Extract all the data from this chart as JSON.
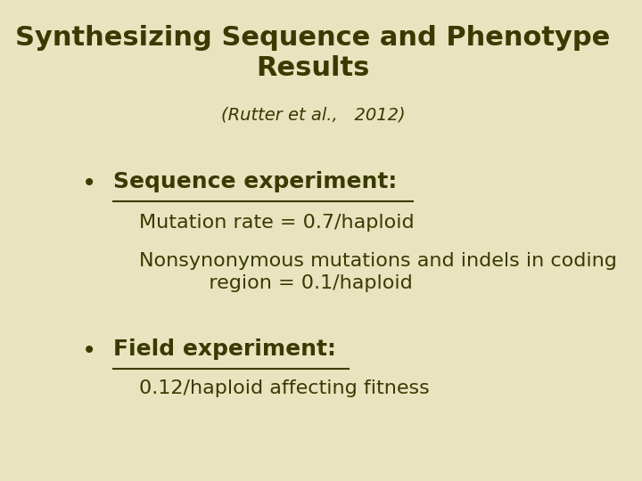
{
  "background_color": "#e8e4c0",
  "title_line1": "Synthesizing Sequence and Phenotype",
  "title_line2": "Results",
  "subtitle": "(Rutter et al.,   2012)",
  "bullet1_header": "Sequence experiment:",
  "bullet1_text1": "Mutation rate = 0.7/haploid",
  "bullet1_text2": "Nonsynonymous mutations and indels in coding\n           region = 0.1/haploid",
  "bullet2_header": "Field experiment:",
  "bullet2_text1": "0.12/haploid affecting fitness",
  "text_color": "#3a3a00",
  "title_fontsize": 22,
  "subtitle_fontsize": 14,
  "bullet_header_fontsize": 18,
  "bullet_text_fontsize": 16
}
